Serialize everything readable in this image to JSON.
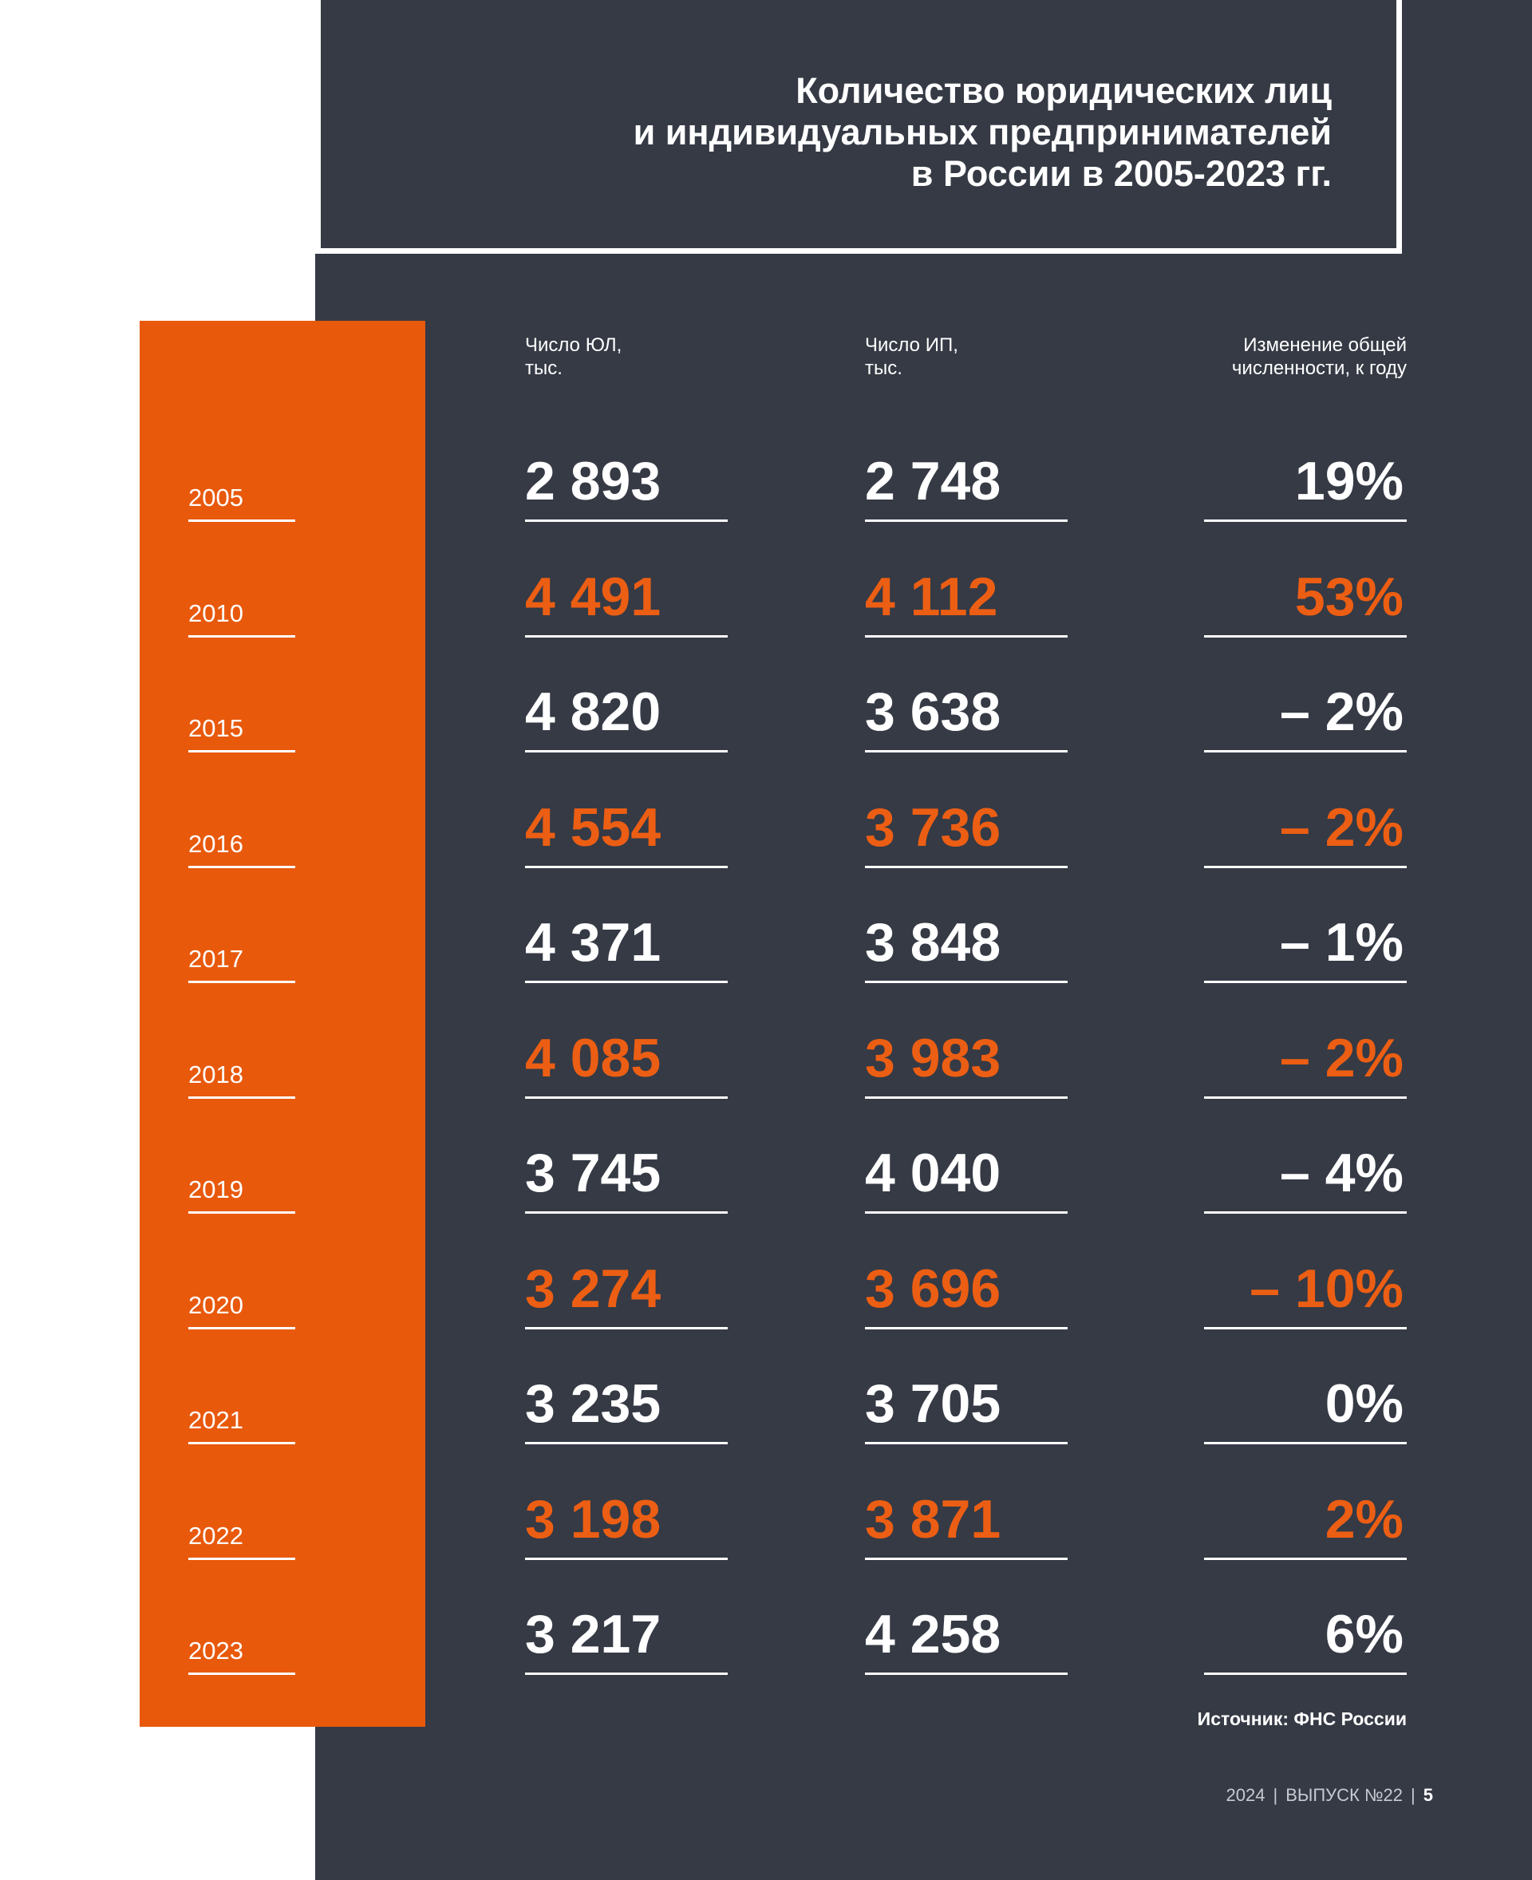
{
  "colors": {
    "dark": "#353a45",
    "orange": "#e8590c",
    "accent_text": "#ec5e13",
    "white": "#ffffff"
  },
  "header": {
    "title": "Количество юридических лиц\nи индивидуальных предпринимателей\nв России в 2005-2023 гг."
  },
  "chart_data": {
    "type": "table",
    "title": "Количество юридических лиц\nи индивидуальных предпринимателей\nв России в 2005-2023 гг.",
    "columns": [
      "Число ЮЛ,\nтыс.",
      "Число ИП,\nтыс.",
      "Изменение общей\nчисленности, к году"
    ],
    "rows": [
      {
        "year": "2005",
        "jl": "2 893",
        "ip": "2 748",
        "change": "19%"
      },
      {
        "year": "2010",
        "jl": "4 491",
        "ip": "4 112",
        "change": "53%"
      },
      {
        "year": "2015",
        "jl": "4 820",
        "ip": "3 638",
        "change": "– 2%"
      },
      {
        "year": "2016",
        "jl": "4 554",
        "ip": "3 736",
        "change": "– 2%"
      },
      {
        "year": "2017",
        "jl": "4 371",
        "ip": "3 848",
        "change": "– 1%"
      },
      {
        "year": "2018",
        "jl": "4 085",
        "ip": "3 983",
        "change": "– 2%"
      },
      {
        "year": "2019",
        "jl": "3 745",
        "ip": "4 040",
        "change": "– 4%"
      },
      {
        "year": "2020",
        "jl": "3 274",
        "ip": "3 696",
        "change": "– 10%"
      },
      {
        "year": "2021",
        "jl": "3 235",
        "ip": "3 705",
        "change": "0%"
      },
      {
        "year": "2022",
        "jl": "3 198",
        "ip": "3 871",
        "change": "2%"
      },
      {
        "year": "2023",
        "jl": "3 217",
        "ip": "4 258",
        "change": "6%"
      }
    ]
  },
  "source": "Источник: ФНС России",
  "footer": {
    "year": "2024",
    "issue": "ВЫПУСК №22",
    "page": "5"
  }
}
